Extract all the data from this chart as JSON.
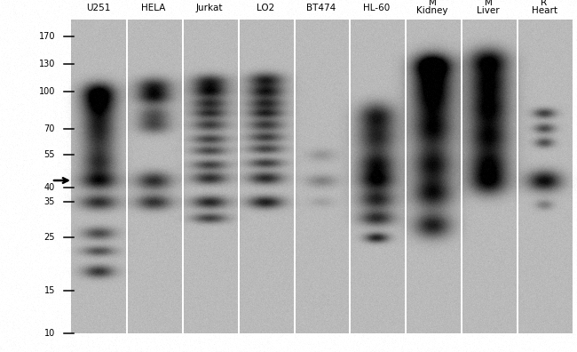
{
  "background_color": "#ffffff",
  "gel_bg_gray": 185,
  "lane_labels_line1": [
    "U251",
    "HELA",
    "Jurkat",
    "LO2",
    "BT474",
    "HL-60",
    "M",
    "M",
    "R"
  ],
  "lane_labels_line2": [
    "",
    "",
    "",
    "",
    "",
    "",
    "Kidney",
    "Liver",
    "Heart"
  ],
  "mw_markers": [
    170,
    130,
    100,
    70,
    55,
    40,
    35,
    25,
    15,
    10
  ],
  "arrow_mw": 43,
  "fig_width": 6.5,
  "fig_height": 3.96,
  "dpi": 100
}
